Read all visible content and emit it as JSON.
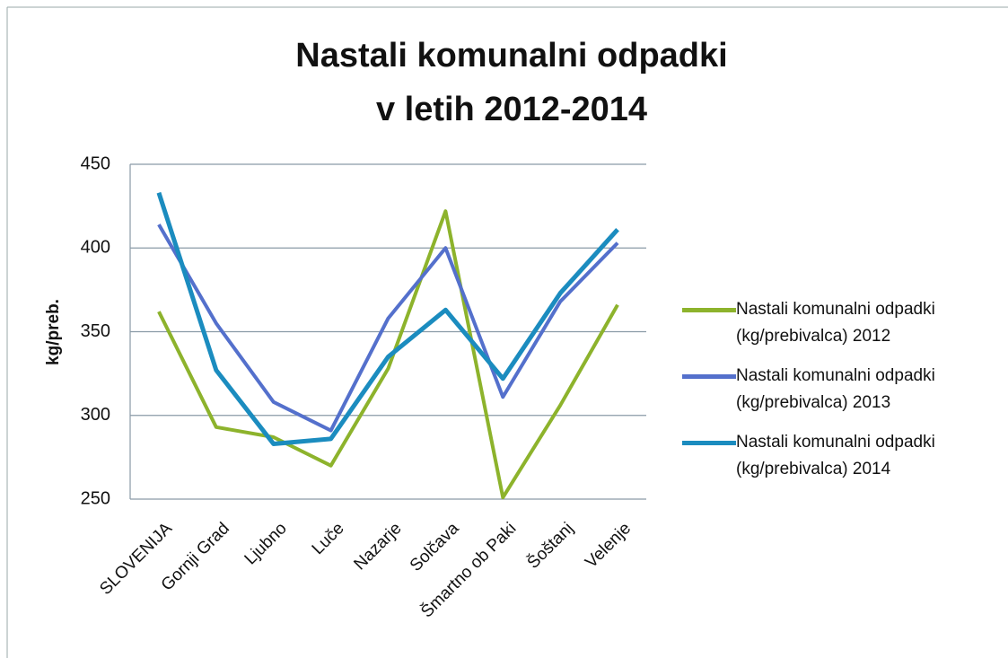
{
  "chart_data": {
    "type": "line",
    "title": [
      "Nastali komunalni odpadki",
      "v letih 2012-2014"
    ],
    "ylabel": "kg/preb.",
    "categories": [
      "SLOVENIJA",
      "Gornji Grad",
      "Ljubno",
      "Luče",
      "Nazarje",
      "Solčava",
      "Šmartno ob Paki",
      "Šoštanj",
      "Velenje"
    ],
    "series": [
      {
        "name": "Nastali komunalni odpadki (kg/prebivalca) 2012",
        "color": "#8db32c",
        "values": [
          362,
          293,
          287,
          270,
          328,
          422,
          251,
          306,
          366
        ]
      },
      {
        "name": "Nastali komunalni odpadki (kg/prebivalca) 2013",
        "color": "#5470cc",
        "values": [
          414,
          355,
          308,
          291,
          358,
          400,
          311,
          368,
          403
        ]
      },
      {
        "name": "Nastali komunalni odpadki (kg/prebivalca) 2014",
        "color": "#1b8cbf",
        "values": [
          433,
          327,
          283,
          286,
          335,
          363,
          322,
          373,
          411
        ]
      }
    ],
    "ylim": [
      250,
      450
    ],
    "yticks": [
      250,
      300,
      350,
      400,
      450
    ],
    "grid": true,
    "legend": "right"
  }
}
